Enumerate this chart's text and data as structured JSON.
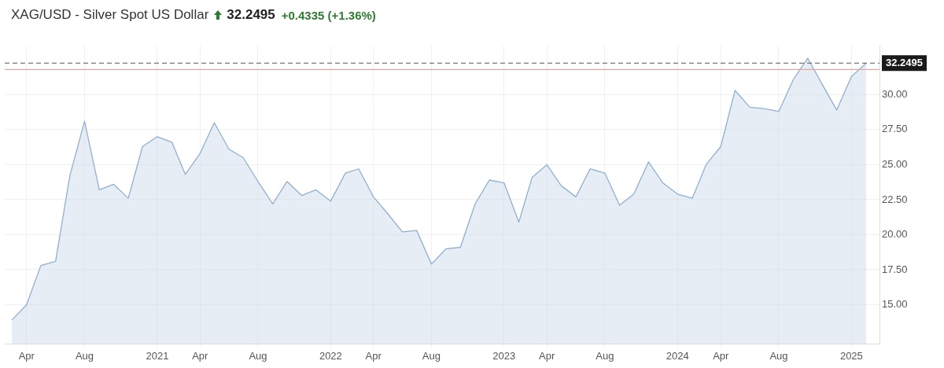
{
  "chart_data": {
    "type": "area",
    "title": "XAG/USD - Silver Spot US Dollar",
    "annotations": [
      "32.2495",
      "+0.4335 (+1.36%)"
    ],
    "x": [
      "2020-03",
      "2020-04",
      "2020-05",
      "2020-06",
      "2020-07",
      "2020-08",
      "2020-09",
      "2020-10",
      "2020-11",
      "2020-12",
      "2021-01",
      "2021-02",
      "2021-03",
      "2021-04",
      "2021-05",
      "2021-06",
      "2021-07",
      "2021-08",
      "2021-09",
      "2021-10",
      "2021-11",
      "2021-12",
      "2022-01",
      "2022-02",
      "2022-03",
      "2022-04",
      "2022-05",
      "2022-06",
      "2022-07",
      "2022-08",
      "2022-09",
      "2022-10",
      "2022-11",
      "2022-12",
      "2023-01",
      "2023-02",
      "2023-03",
      "2023-04",
      "2023-05",
      "2023-06",
      "2023-07",
      "2023-08",
      "2023-09",
      "2023-10",
      "2023-11",
      "2023-12",
      "2024-01",
      "2024-02",
      "2024-03",
      "2024-04",
      "2024-05",
      "2024-06",
      "2024-07",
      "2024-08",
      "2024-09",
      "2024-10",
      "2024-11",
      "2024-12",
      "2025-01",
      "2025-02"
    ],
    "series": [
      {
        "color": "#8fb0cf",
        "values": [
          13.9,
          15.0,
          17.8,
          18.1,
          24.2,
          28.1,
          23.2,
          23.6,
          22.6,
          26.3,
          27.0,
          26.6,
          24.3,
          25.8,
          28.0,
          26.1,
          25.5,
          23.8,
          22.2,
          23.8,
          22.8,
          23.2,
          22.4,
          24.4,
          24.7,
          22.7,
          21.5,
          20.2,
          20.3,
          17.9,
          19.0,
          19.1,
          22.2,
          23.9,
          23.7,
          20.9,
          24.1,
          25.0,
          23.5,
          22.7,
          24.7,
          24.4,
          22.1,
          22.9,
          25.2,
          23.7,
          22.9,
          22.6,
          25.0,
          26.3,
          30.3,
          29.1,
          29.0,
          28.8,
          31.1,
          32.6,
          30.7,
          28.9,
          31.3,
          32.2495
        ]
      }
    ],
    "xlim": [
      "2020-02-15",
      "2025-03-01"
    ],
    "xticks": [
      {
        "value": "2020-04",
        "label": "Apr"
      },
      {
        "value": "2020-08",
        "label": "Aug"
      },
      {
        "value": "2021-01",
        "label": "2021"
      },
      {
        "value": "2021-04",
        "label": "Apr"
      },
      {
        "value": "2021-08",
        "label": "Aug"
      },
      {
        "value": "2022-01",
        "label": "2022"
      },
      {
        "value": "2022-04",
        "label": "Apr"
      },
      {
        "value": "2022-08",
        "label": "Aug"
      },
      {
        "value": "2023-01",
        "label": "2023"
      },
      {
        "value": "2023-04",
        "label": "Apr"
      },
      {
        "value": "2023-08",
        "label": "Aug"
      },
      {
        "value": "2024-01",
        "label": "2024"
      },
      {
        "value": "2024-04",
        "label": "Apr"
      },
      {
        "value": "2024-08",
        "label": "Aug"
      },
      {
        "value": "2025-01",
        "label": "2025"
      }
    ],
    "ylim": [
      12.2,
      33.5
    ],
    "yticks": [
      {
        "value": 15,
        "label": "15.00"
      },
      {
        "value": 17.5,
        "label": "17.50"
      },
      {
        "value": 20,
        "label": "20.00"
      },
      {
        "value": 22.5,
        "label": "22.50"
      },
      {
        "value": 25,
        "label": "25.00"
      },
      {
        "value": 27.5,
        "label": "27.50"
      },
      {
        "value": 30,
        "label": "30.00"
      }
    ],
    "ref_lines": [
      {
        "axis": "y",
        "value": 32.2495,
        "label": "32.2495",
        "color": "#555555",
        "line_style": "dashed"
      },
      {
        "axis": "y",
        "value": 31.8,
        "color": "#e0a8a0",
        "line_style": "solid"
      }
    ],
    "grid": true,
    "legend": false,
    "marker": "none",
    "line_style": "solid"
  }
}
